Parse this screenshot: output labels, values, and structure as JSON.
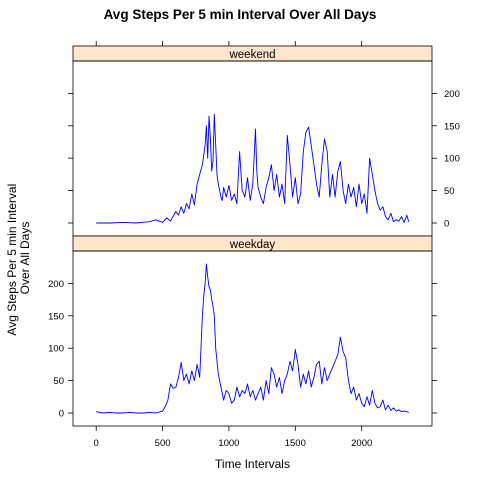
{
  "colors": {
    "line": "#0000ff",
    "strip_fill": "#ffe5cc",
    "frame": "#000000",
    "background": "#ffffff"
  },
  "chart_data": {
    "type": "line",
    "layout": "lattice panels stacked vertically, shared x axis",
    "title": "Avg Steps Per 5 min Interval Over All Days",
    "xlabel": "Time Intervals",
    "ylabel_lines": [
      "Avg Steps Per 5 min Interval",
      "Over All Days"
    ],
    "xlim": [
      -175,
      2530
    ],
    "ylim": [
      -20,
      250
    ],
    "x_ticks": [
      0,
      500,
      1000,
      1500,
      2000
    ],
    "x_tick_labels": [
      "0",
      "500",
      "1000",
      "1500",
      "2000"
    ],
    "y_ticks": [
      0,
      50,
      100,
      150,
      200
    ],
    "y_tick_labels": [
      "0",
      "50",
      "100",
      "150",
      "200"
    ],
    "y_axis_labels_side": {
      "weekend": "right",
      "weekday": "left"
    },
    "grid": false,
    "series": [
      {
        "panel": "weekend",
        "x": [
          0,
          100,
          200,
          300,
          400,
          450,
          500,
          530,
          560,
          600,
          620,
          640,
          660,
          680,
          700,
          720,
          740,
          760,
          780,
          800,
          820,
          830,
          840,
          850,
          860,
          870,
          880,
          890,
          900,
          910,
          920,
          930,
          940,
          950,
          960,
          980,
          1000,
          1020,
          1040,
          1060,
          1080,
          1100,
          1120,
          1140,
          1160,
          1180,
          1200,
          1210,
          1220,
          1240,
          1260,
          1280,
          1300,
          1320,
          1340,
          1360,
          1380,
          1400,
          1420,
          1440,
          1460,
          1480,
          1500,
          1520,
          1540,
          1560,
          1580,
          1600,
          1620,
          1640,
          1660,
          1680,
          1700,
          1720,
          1740,
          1760,
          1780,
          1800,
          1820,
          1840,
          1860,
          1880,
          1900,
          1920,
          1940,
          1960,
          1980,
          2000,
          2020,
          2040,
          2060,
          2080,
          2100,
          2120,
          2140,
          2160,
          2180,
          2200,
          2220,
          2240,
          2260,
          2280,
          2300,
          2320,
          2340,
          2355
        ],
        "values": [
          0,
          0,
          1,
          0,
          2,
          5,
          1,
          8,
          3,
          18,
          12,
          25,
          15,
          30,
          22,
          45,
          28,
          60,
          75,
          90,
          120,
          150,
          100,
          165,
          130,
          80,
          95,
          168,
          120,
          75,
          60,
          50,
          40,
          35,
          55,
          40,
          58,
          35,
          45,
          30,
          110,
          50,
          40,
          70,
          35,
          60,
          145,
          80,
          55,
          40,
          30,
          55,
          70,
          90,
          50,
          75,
          40,
          60,
          30,
          135,
          90,
          40,
          70,
          30,
          45,
          110,
          140,
          148,
          120,
          90,
          60,
          40,
          90,
          130,
          110,
          40,
          75,
          40,
          80,
          95,
          50,
          30,
          60,
          40,
          55,
          25,
          60,
          30,
          45,
          15,
          100,
          75,
          50,
          30,
          20,
          25,
          10,
          5,
          15,
          2,
          5,
          3,
          10,
          1,
          12,
          2
        ]
      },
      {
        "panel": "weekday",
        "x": [
          0,
          50,
          100,
          150,
          200,
          250,
          300,
          350,
          400,
          450,
          500,
          520,
          540,
          560,
          580,
          600,
          620,
          640,
          660,
          680,
          700,
          720,
          740,
          760,
          780,
          800,
          810,
          820,
          830,
          840,
          850,
          860,
          870,
          880,
          890,
          900,
          910,
          920,
          940,
          960,
          980,
          1000,
          1020,
          1040,
          1060,
          1080,
          1100,
          1120,
          1140,
          1160,
          1180,
          1200,
          1220,
          1240,
          1260,
          1280,
          1300,
          1320,
          1340,
          1360,
          1380,
          1400,
          1420,
          1440,
          1460,
          1480,
          1500,
          1520,
          1540,
          1560,
          1580,
          1600,
          1620,
          1640,
          1660,
          1680,
          1700,
          1720,
          1740,
          1760,
          1780,
          1800,
          1820,
          1840,
          1860,
          1880,
          1900,
          1920,
          1940,
          1960,
          1980,
          2000,
          2020,
          2040,
          2060,
          2080,
          2100,
          2120,
          2140,
          2160,
          2180,
          2200,
          2220,
          2240,
          2260,
          2280,
          2300,
          2320,
          2340,
          2355
        ],
        "values": [
          2,
          0,
          1,
          0,
          0,
          1,
          0,
          0,
          1,
          0,
          3,
          10,
          20,
          45,
          38,
          40,
          55,
          78,
          50,
          60,
          45,
          65,
          50,
          75,
          55,
          150,
          180,
          200,
          230,
          210,
          195,
          190,
          175,
          165,
          150,
          100,
          80,
          60,
          40,
          20,
          35,
          30,
          15,
          20,
          40,
          25,
          35,
          30,
          45,
          25,
          35,
          20,
          30,
          40,
          20,
          50,
          30,
          70,
          60,
          40,
          55,
          30,
          50,
          60,
          80,
          65,
          98,
          75,
          40,
          60,
          45,
          65,
          40,
          55,
          75,
          80,
          45,
          70,
          50,
          60,
          70,
          80,
          90,
          117,
          95,
          85,
          50,
          30,
          40,
          20,
          30,
          15,
          10,
          25,
          12,
          35,
          15,
          8,
          10,
          20,
          5,
          12,
          4,
          8,
          3,
          5,
          2,
          3,
          2,
          1
        ]
      }
    ]
  }
}
